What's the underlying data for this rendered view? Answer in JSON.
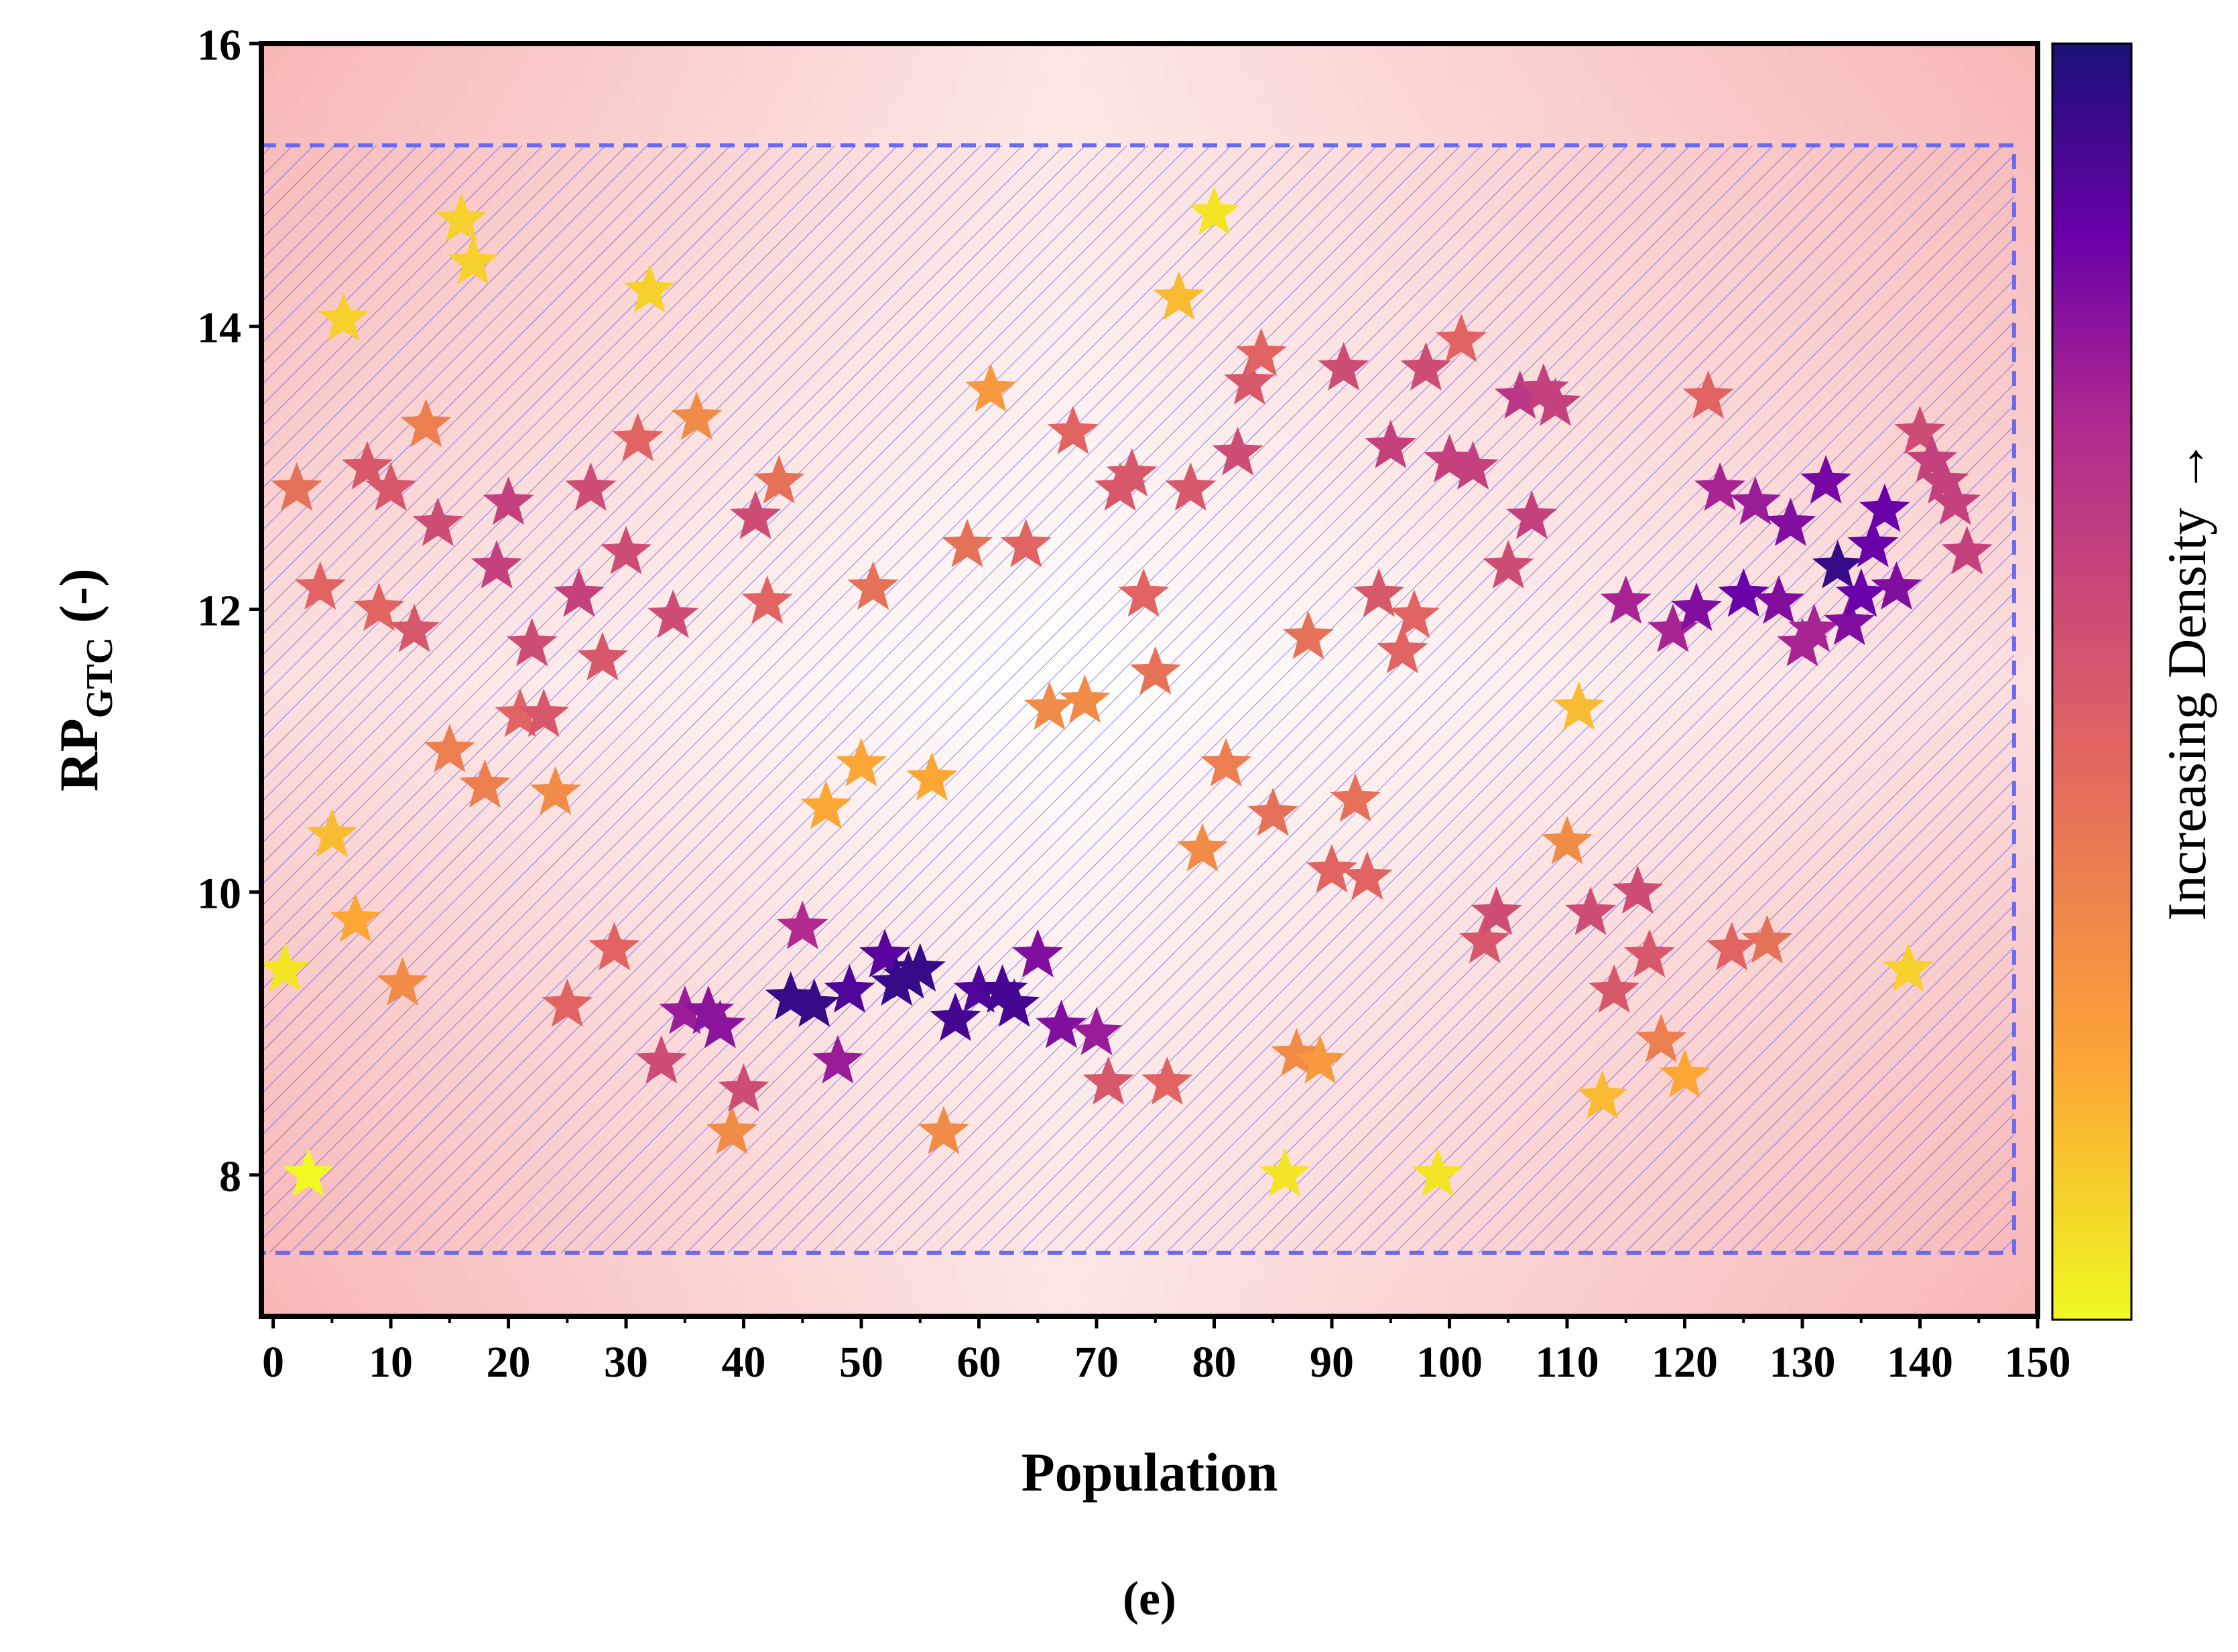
{
  "chart_data": {
    "type": "scatter",
    "marker": "star",
    "xlabel": "Population",
    "ylabel_main": "RP",
    "ylabel_sub": "GTC",
    "ylabel_suffix": " (-)",
    "xlim": [
      -1,
      150
    ],
    "ylim": [
      7,
      16
    ],
    "xticks": [
      "0",
      "10",
      "20",
      "30",
      "40",
      "50",
      "60",
      "70",
      "80",
      "90",
      "100",
      "110",
      "120",
      "130",
      "140",
      "150"
    ],
    "yticks": [
      "8",
      "10",
      "12",
      "14",
      "16"
    ],
    "colorbar_label": "Increasing Density →",
    "caption": "(e)",
    "feasible_region": {
      "x_range": [
        -1,
        148
      ],
      "y_range": [
        7.45,
        15.28
      ]
    },
    "colors": {
      "density_high": "#1a1078",
      "density_low": "#f0f921",
      "region_border": "#6a6af0",
      "hatch": "#3a3ae0",
      "background_tint": "#f8b7b7"
    },
    "points": [
      [
        1,
        9.45,
        0.05
      ],
      [
        2,
        12.85,
        0.4
      ],
      [
        3,
        8.0,
        0.0
      ],
      [
        4,
        12.15,
        0.45
      ],
      [
        5,
        10.4,
        0.15
      ],
      [
        6,
        14.05,
        0.1
      ],
      [
        7,
        9.8,
        0.2
      ],
      [
        8,
        13.0,
        0.5
      ],
      [
        9,
        12.0,
        0.45
      ],
      [
        10,
        12.85,
        0.5
      ],
      [
        11,
        9.35,
        0.3
      ],
      [
        12,
        11.85,
        0.5
      ],
      [
        13,
        13.3,
        0.35
      ],
      [
        14,
        12.6,
        0.55
      ],
      [
        15,
        11.0,
        0.35
      ],
      [
        16,
        14.75,
        0.1
      ],
      [
        17,
        14.45,
        0.1
      ],
      [
        18,
        10.75,
        0.35
      ],
      [
        19,
        12.3,
        0.6
      ],
      [
        20,
        12.75,
        0.6
      ],
      [
        21,
        11.25,
        0.45
      ],
      [
        22,
        11.75,
        0.55
      ],
      [
        23,
        11.25,
        0.5
      ],
      [
        24,
        10.7,
        0.3
      ],
      [
        25,
        9.2,
        0.45
      ],
      [
        26,
        12.1,
        0.6
      ],
      [
        27,
        12.85,
        0.55
      ],
      [
        28,
        11.65,
        0.5
      ],
      [
        29,
        9.6,
        0.45
      ],
      [
        30,
        12.4,
        0.55
      ],
      [
        31,
        13.2,
        0.45
      ],
      [
        32,
        14.25,
        0.1
      ],
      [
        33,
        8.8,
        0.55
      ],
      [
        34,
        11.95,
        0.55
      ],
      [
        35,
        9.15,
        0.75
      ],
      [
        36,
        13.35,
        0.3
      ],
      [
        37,
        9.15,
        0.78
      ],
      [
        38,
        9.05,
        0.78
      ],
      [
        39,
        8.3,
        0.3
      ],
      [
        40,
        8.6,
        0.55
      ],
      [
        41,
        12.65,
        0.55
      ],
      [
        42,
        12.05,
        0.45
      ],
      [
        43,
        12.9,
        0.4
      ],
      [
        44,
        9.25,
        0.95
      ],
      [
        45,
        9.75,
        0.7
      ],
      [
        46,
        9.2,
        0.95
      ],
      [
        47,
        10.6,
        0.2
      ],
      [
        48,
        8.8,
        0.75
      ],
      [
        49,
        9.3,
        0.9
      ],
      [
        50,
        10.9,
        0.2
      ],
      [
        51,
        12.15,
        0.4
      ],
      [
        52,
        9.55,
        0.88
      ],
      [
        53,
        9.35,
        0.95
      ],
      [
        54,
        9.4,
        0.95
      ],
      [
        55,
        9.45,
        0.95
      ],
      [
        56,
        10.8,
        0.2
      ],
      [
        57,
        8.3,
        0.3
      ],
      [
        58,
        9.1,
        0.92
      ],
      [
        59,
        12.45,
        0.4
      ],
      [
        60,
        9.3,
        0.9
      ],
      [
        61,
        13.55,
        0.25
      ],
      [
        62,
        9.3,
        0.92
      ],
      [
        63,
        9.2,
        0.92
      ],
      [
        64,
        12.45,
        0.45
      ],
      [
        65,
        9.55,
        0.8
      ],
      [
        66,
        11.3,
        0.3
      ],
      [
        67,
        9.05,
        0.8
      ],
      [
        68,
        13.25,
        0.45
      ],
      [
        69,
        11.35,
        0.3
      ],
      [
        70,
        9.0,
        0.75
      ],
      [
        71,
        8.65,
        0.5
      ],
      [
        72,
        12.85,
        0.5
      ],
      [
        73,
        12.95,
        0.5
      ],
      [
        74,
        12.1,
        0.45
      ],
      [
        75,
        11.55,
        0.4
      ],
      [
        76,
        8.65,
        0.45
      ],
      [
        77,
        14.2,
        0.15
      ],
      [
        78,
        12.85,
        0.5
      ],
      [
        79,
        10.3,
        0.3
      ],
      [
        80,
        14.8,
        0.05
      ],
      [
        81,
        10.9,
        0.35
      ],
      [
        82,
        13.1,
        0.55
      ],
      [
        83,
        13.6,
        0.5
      ],
      [
        84,
        13.8,
        0.45
      ],
      [
        85,
        10.55,
        0.4
      ],
      [
        87,
        8.85,
        0.3
      ],
      [
        88,
        11.8,
        0.4
      ],
      [
        89,
        8.8,
        0.25
      ],
      [
        86,
        8.0,
        0.05
      ],
      [
        90,
        10.15,
        0.45
      ],
      [
        91,
        13.7,
        0.55
      ],
      [
        92,
        10.65,
        0.4
      ],
      [
        93,
        10.1,
        0.45
      ],
      [
        94,
        12.1,
        0.5
      ],
      [
        95,
        13.15,
        0.6
      ],
      [
        96,
        11.7,
        0.45
      ],
      [
        97,
        11.95,
        0.45
      ],
      [
        98,
        13.7,
        0.55
      ],
      [
        99,
        8.0,
        0.05
      ],
      [
        100,
        13.05,
        0.6
      ],
      [
        101,
        13.9,
        0.45
      ],
      [
        102,
        13.0,
        0.6
      ],
      [
        103,
        9.65,
        0.5
      ],
      [
        104,
        9.85,
        0.55
      ],
      [
        105,
        12.3,
        0.55
      ],
      [
        106,
        13.5,
        0.65
      ],
      [
        107,
        12.65,
        0.6
      ],
      [
        108,
        13.55,
        0.6
      ],
      [
        109,
        13.45,
        0.6
      ],
      [
        110,
        10.35,
        0.3
      ],
      [
        111,
        11.3,
        0.15
      ],
      [
        112,
        9.85,
        0.55
      ],
      [
        113,
        8.55,
        0.15
      ],
      [
        114,
        9.3,
        0.5
      ],
      [
        115,
        12.05,
        0.72
      ],
      [
        116,
        10.0,
        0.55
      ],
      [
        117,
        9.55,
        0.5
      ],
      [
        118,
        8.95,
        0.35
      ],
      [
        119,
        11.85,
        0.72
      ],
      [
        120,
        8.7,
        0.2
      ],
      [
        121,
        12.0,
        0.8
      ],
      [
        122,
        13.5,
        0.45
      ],
      [
        123,
        12.85,
        0.72
      ],
      [
        124,
        9.6,
        0.45
      ],
      [
        125,
        12.1,
        0.85
      ],
      [
        126,
        12.75,
        0.75
      ],
      [
        127,
        9.65,
        0.4
      ],
      [
        128,
        12.05,
        0.8
      ],
      [
        129,
        12.6,
        0.8
      ],
      [
        130,
        11.75,
        0.72
      ],
      [
        131,
        11.85,
        0.72
      ],
      [
        132,
        12.9,
        0.82
      ],
      [
        133,
        12.3,
        0.95
      ],
      [
        134,
        11.9,
        0.8
      ],
      [
        135,
        12.1,
        0.85
      ],
      [
        136,
        12.45,
        0.85
      ],
      [
        137,
        12.7,
        0.85
      ],
      [
        138,
        12.15,
        0.8
      ],
      [
        139,
        9.45,
        0.1
      ],
      [
        140,
        13.25,
        0.55
      ],
      [
        141,
        13.05,
        0.6
      ],
      [
        142,
        12.9,
        0.6
      ],
      [
        143,
        12.75,
        0.6
      ],
      [
        144,
        12.4,
        0.6
      ]
    ]
  }
}
